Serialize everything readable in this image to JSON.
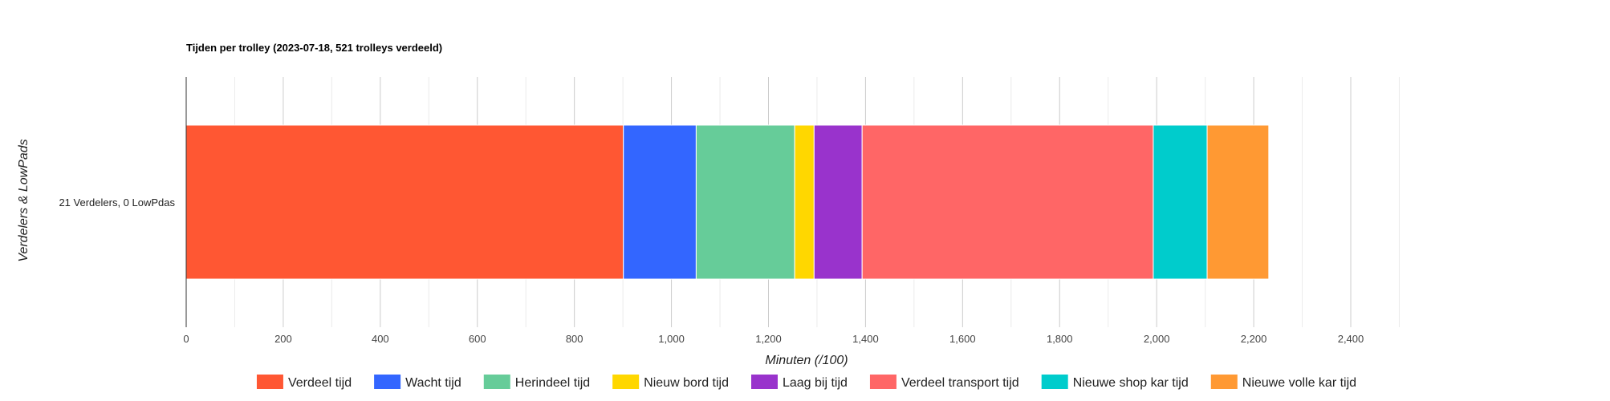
{
  "chart_data": {
    "type": "bar",
    "orientation": "horizontal",
    "stacked": true,
    "title": "Tijden per trolley (2023-07-18, 521 trolleys verdeeld)",
    "xlabel": "Minuten (/100)",
    "ylabel": "Verdelers & LowPads",
    "categories": [
      "21 Verdelers, 0 LowPdas"
    ],
    "xlim": [
      0,
      2400
    ],
    "xticks": [
      "0",
      "200",
      "400",
      "600",
      "800",
      "1,000",
      "1,200",
      "1,400",
      "1,600",
      "1,800",
      "2,000",
      "2,200",
      "2,400"
    ],
    "xtick_values": [
      0,
      200,
      400,
      600,
      800,
      1000,
      1200,
      1400,
      1600,
      1800,
      2000,
      2200,
      2400
    ],
    "grid": true,
    "legend_position": "bottom",
    "series": [
      {
        "name": "Verdeel tijd",
        "values": [
          901
        ],
        "color": "#ff5733"
      },
      {
        "name": "Wacht tijd",
        "values": [
          150
        ],
        "color": "#3366ff"
      },
      {
        "name": "Herindeel tijd",
        "values": [
          203
        ],
        "color": "#66cc99"
      },
      {
        "name": "Nieuw bord tijd",
        "values": [
          40
        ],
        "color": "#ffd700"
      },
      {
        "name": "Laag bij tijd",
        "values": [
          99
        ],
        "color": "#9933cc"
      },
      {
        "name": "Verdeel transport tijd",
        "values": [
          600
        ],
        "color": "#ff6666"
      },
      {
        "name": "Nieuwe shop kar tijd",
        "values": [
          111
        ],
        "color": "#00cccc"
      },
      {
        "name": "Nieuwe volle kar tijd",
        "values": [
          127
        ],
        "color": "#ff9933"
      }
    ]
  }
}
